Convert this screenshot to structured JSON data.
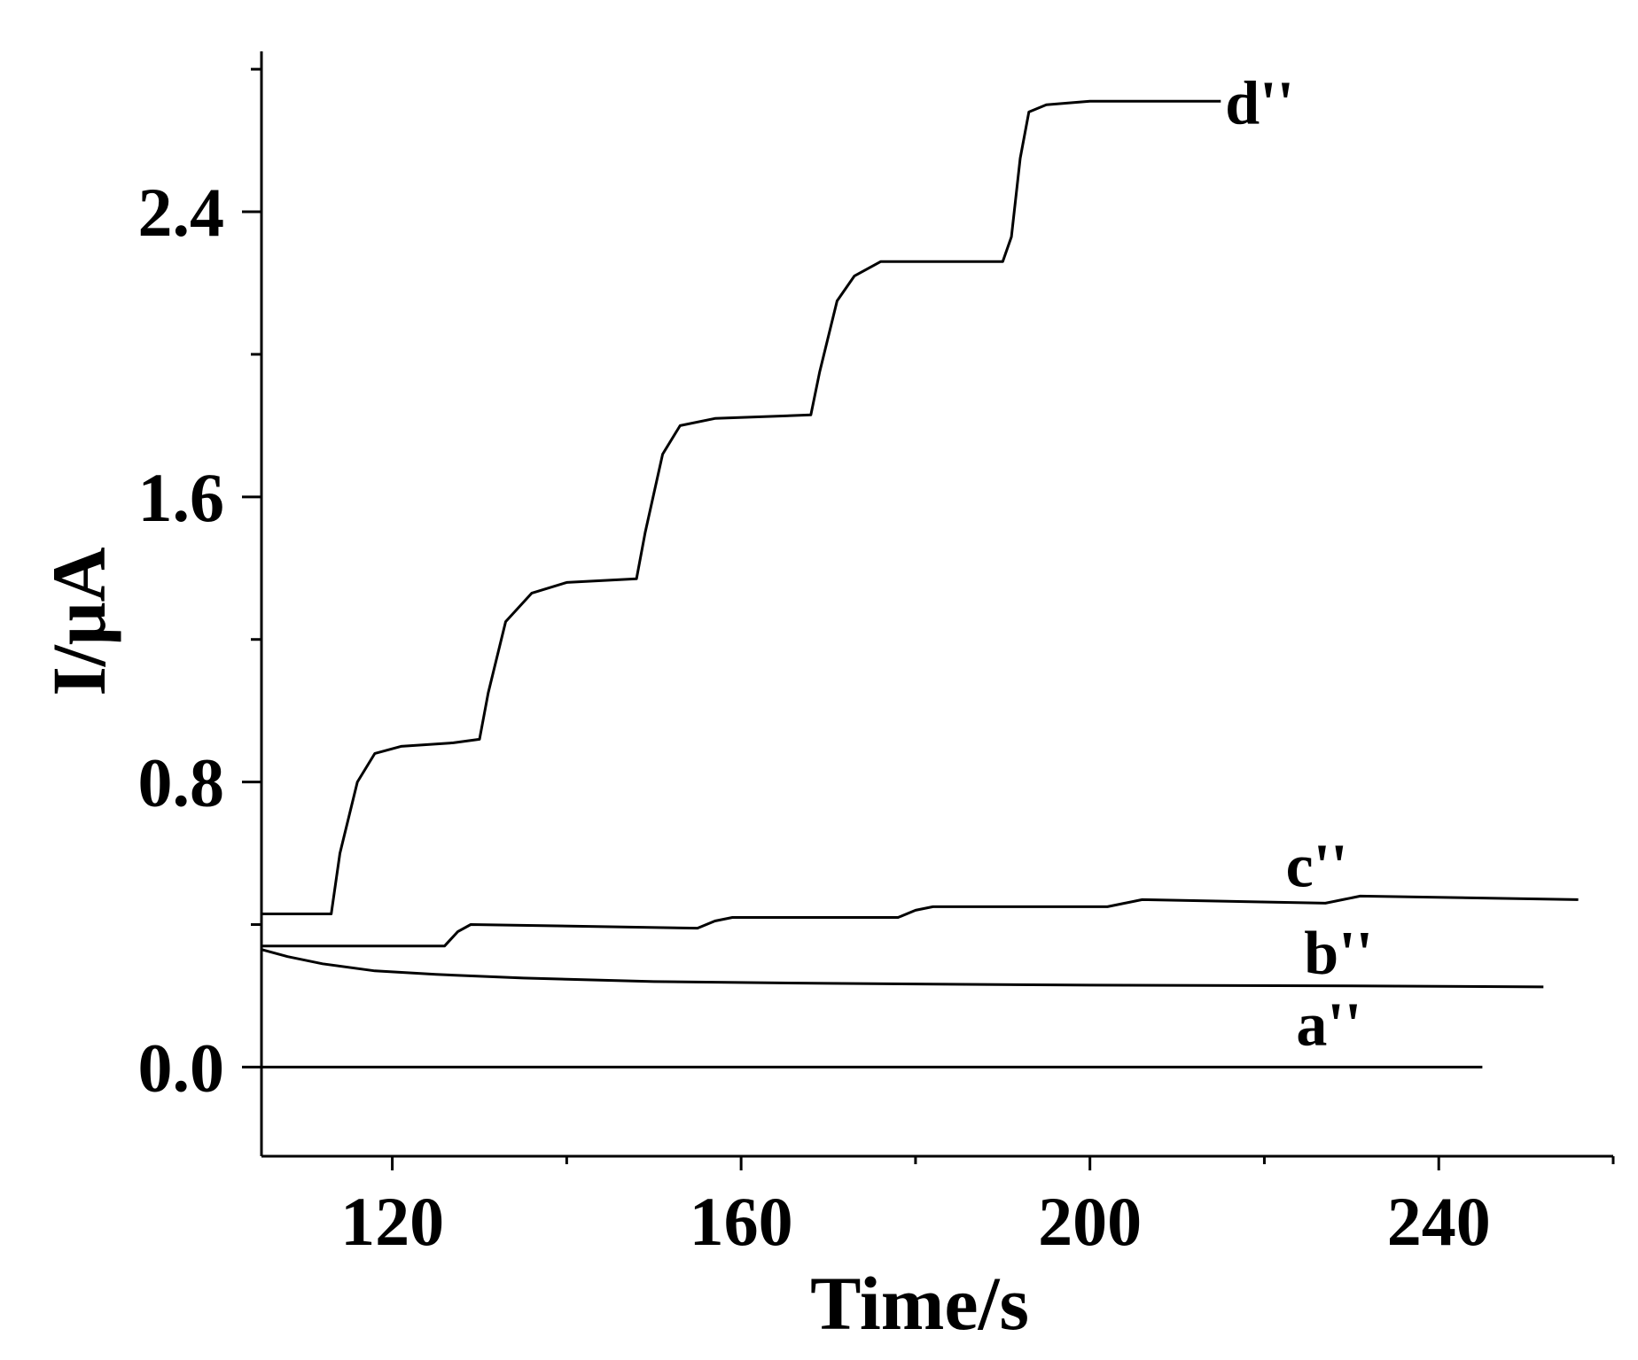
{
  "chart_data": {
    "type": "line",
    "xlabel": "Time/s",
    "ylabel": "I/μA",
    "xlim": [
      105,
      260
    ],
    "ylim": [
      -0.25,
      2.85
    ],
    "x_ticks": [
      120,
      160,
      200,
      240
    ],
    "x_tick_labels": [
      "120",
      "160",
      "200",
      "240"
    ],
    "x_minor_ticks": [
      140,
      180,
      220,
      260
    ],
    "y_ticks": [
      0.0,
      0.8,
      1.6,
      2.4
    ],
    "y_tick_labels": [
      "0.0",
      "0.8",
      "1.6",
      "2.4"
    ],
    "y_minor_ticks": [
      -0.4,
      0.4,
      1.2,
      2.0,
      2.8
    ],
    "grid": false,
    "series": [
      {
        "name": "a''",
        "x": [
          105,
          150,
          200,
          245
        ],
        "y": [
          0.0,
          0.0,
          0.0,
          0.0
        ]
      },
      {
        "name": "b''",
        "x": [
          105,
          108,
          112,
          118,
          125,
          135,
          150,
          170,
          200,
          230,
          252
        ],
        "y": [
          0.33,
          0.31,
          0.29,
          0.27,
          0.26,
          0.25,
          0.24,
          0.235,
          0.23,
          0.228,
          0.225
        ]
      },
      {
        "name": "c''",
        "x": [
          105,
          126,
          127.5,
          129,
          155,
          157,
          159,
          178,
          180,
          182,
          202,
          204,
          206,
          227,
          229,
          231,
          256
        ],
        "y": [
          0.34,
          0.34,
          0.38,
          0.4,
          0.39,
          0.41,
          0.42,
          0.42,
          0.44,
          0.45,
          0.45,
          0.46,
          0.47,
          0.46,
          0.47,
          0.48,
          0.47
        ]
      },
      {
        "name": "d''",
        "x": [
          105,
          113,
          114,
          116,
          118,
          121,
          127,
          130,
          131,
          133,
          136,
          140,
          148,
          149,
          151,
          153,
          157,
          168,
          169,
          171,
          173,
          176,
          190,
          191,
          192,
          193,
          195,
          200,
          215
        ],
        "y": [
          0.43,
          0.43,
          0.6,
          0.8,
          0.88,
          0.9,
          0.91,
          0.92,
          1.05,
          1.25,
          1.33,
          1.36,
          1.37,
          1.5,
          1.72,
          1.8,
          1.82,
          1.83,
          1.95,
          2.15,
          2.22,
          2.26,
          2.26,
          2.33,
          2.55,
          2.68,
          2.7,
          2.71,
          2.71
        ]
      }
    ]
  }
}
